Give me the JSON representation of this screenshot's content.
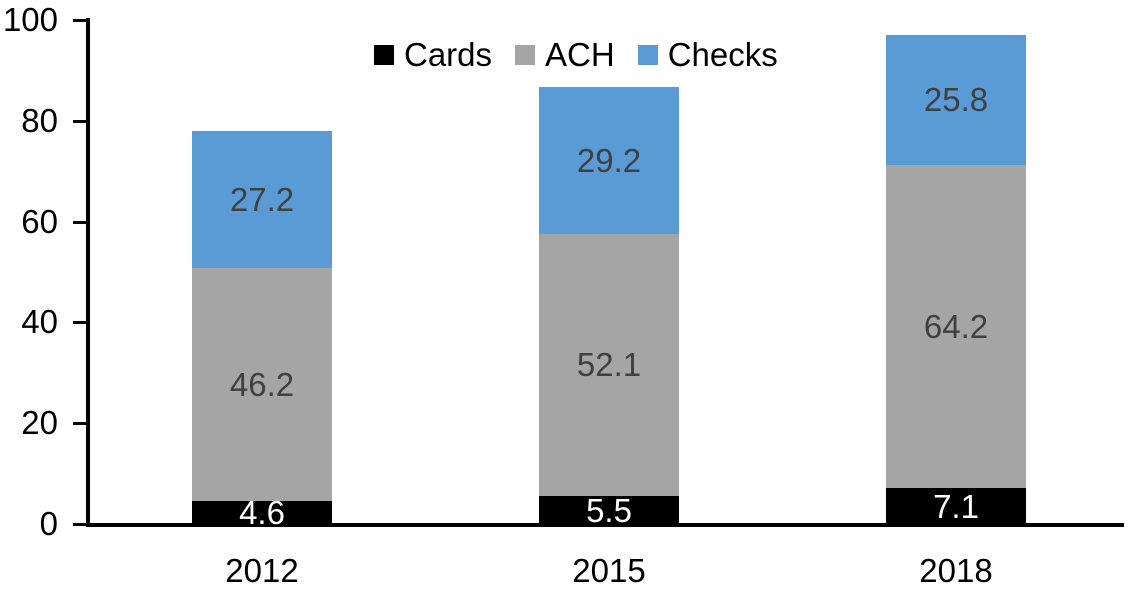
{
  "chart_data": {
    "type": "bar",
    "stacked": true,
    "categories": [
      "2012",
      "2015",
      "2018"
    ],
    "series": [
      {
        "name": "Cards",
        "color": "#000000",
        "label_color": "#ffffff",
        "values": [
          4.6,
          5.5,
          7.1
        ]
      },
      {
        "name": "ACH",
        "color": "#a5a5a5",
        "label_color": "#404040",
        "values": [
          46.2,
          52.1,
          64.2
        ]
      },
      {
        "name": "Checks",
        "color": "#5b9bd5",
        "label_color": "#404040",
        "values": [
          27.2,
          29.2,
          25.8
        ]
      }
    ],
    "totals": [
      78.0,
      86.8,
      97.1
    ],
    "ylim": [
      0,
      100
    ],
    "yticks": [
      0,
      20,
      40,
      60,
      80,
      100
    ],
    "legend_position": "top",
    "grid": false,
    "axis_color": "#000000",
    "tick_label_color": "#000000",
    "background_color": "#ffffff"
  }
}
